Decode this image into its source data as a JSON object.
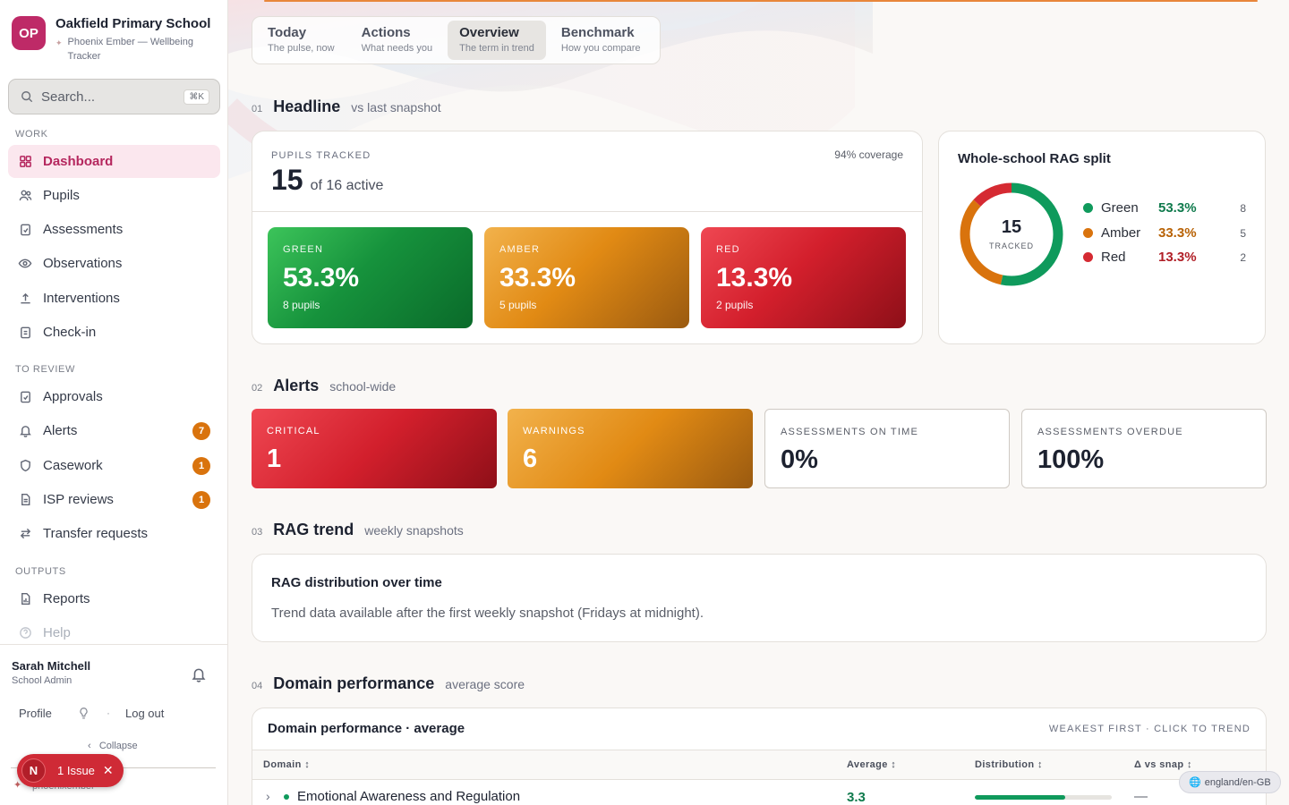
{
  "school": {
    "initials": "OP",
    "name": "Oakfield Primary School",
    "product": "Phoenix Ember — Wellbeing Tracker"
  },
  "search": {
    "placeholder": "Search...",
    "shortcut": "⌘K"
  },
  "sidebar": {
    "sections": {
      "work": "WORK",
      "review": "TO REVIEW",
      "outputs": "OUTPUTS"
    },
    "work_items": [
      {
        "label": "Dashboard",
        "icon": "grid-icon"
      },
      {
        "label": "Pupils",
        "icon": "users-icon"
      },
      {
        "label": "Assessments",
        "icon": "clipboard-check-icon"
      },
      {
        "label": "Observations",
        "icon": "eye-icon"
      },
      {
        "label": "Interventions",
        "icon": "upload-icon"
      },
      {
        "label": "Check-in",
        "icon": "clipboard-icon"
      }
    ],
    "review_items": [
      {
        "label": "Approvals",
        "icon": "clipboard-check-icon"
      },
      {
        "label": "Alerts",
        "icon": "bell-icon",
        "badge": "7"
      },
      {
        "label": "Casework",
        "icon": "shield-icon",
        "badge": "1"
      },
      {
        "label": "ISP reviews",
        "icon": "document-icon",
        "badge": "1"
      },
      {
        "label": "Transfer requests",
        "icon": "arrows-icon"
      }
    ],
    "output_items": [
      {
        "label": "Reports",
        "icon": "report-icon"
      },
      {
        "label": "Help",
        "icon": "help-icon"
      }
    ]
  },
  "user": {
    "name": "Sarah Mitchell",
    "role": "School Admin",
    "profile_label": "Profile",
    "logout_label": "Log out",
    "collapse_label": "Collapse"
  },
  "issue_pill": {
    "avatar": "N",
    "label": "1 Issue"
  },
  "tabs": [
    {
      "name": "Today",
      "sub": "The pulse, now"
    },
    {
      "name": "Actions",
      "sub": "What needs you"
    },
    {
      "name": "Overview",
      "sub": "The term in trend",
      "active": true
    },
    {
      "name": "Benchmark",
      "sub": "How you compare"
    }
  ],
  "headline": {
    "num": "01",
    "title": "Headline",
    "sub": "vs last snapshot",
    "pupils_label": "PUPILS TRACKED",
    "pupils_count": "15",
    "pupils_of": "of 16 active",
    "coverage": "94% coverage",
    "tiles": [
      {
        "label": "GREEN",
        "value": "53.3%",
        "sub": "8 pupils"
      },
      {
        "label": "AMBER",
        "value": "33.3%",
        "sub": "5 pupils"
      },
      {
        "label": "RED",
        "value": "13.3%",
        "sub": "2 pupils"
      }
    ]
  },
  "rag_split": {
    "title": "Whole-school RAG split",
    "total": "15",
    "total_label": "TRACKED",
    "rows": [
      {
        "name": "Green",
        "pct": "53.3%",
        "count": "8",
        "color": "#0f9a5c"
      },
      {
        "name": "Amber",
        "pct": "33.3%",
        "count": "5",
        "color": "#d9730d"
      },
      {
        "name": "Red",
        "pct": "13.3%",
        "count": "2",
        "color": "#d52a32"
      }
    ]
  },
  "alerts": {
    "num": "02",
    "title": "Alerts",
    "sub": "school-wide",
    "tiles": [
      {
        "label": "CRITICAL",
        "value": "1"
      },
      {
        "label": "WARNINGS",
        "value": "6"
      },
      {
        "label": "ASSESSMENTS ON TIME",
        "value": "0%"
      },
      {
        "label": "ASSESSMENTS OVERDUE",
        "value": "100%"
      }
    ]
  },
  "trend": {
    "num": "03",
    "title": "RAG trend",
    "sub": "weekly snapshots",
    "card_title": "RAG distribution over time",
    "message": "Trend data available after the first weekly snapshot (Fridays at midnight)."
  },
  "domain": {
    "num": "04",
    "title": "Domain performance",
    "sub": "average score",
    "card_title": "Domain performance · average",
    "hint": "WEAKEST FIRST · CLICK TO TREND",
    "columns": [
      "Domain ↕",
      "Average ↕",
      "Distribution ↕",
      "Δ vs snap ↕"
    ],
    "rows": [
      {
        "domain": "Emotional Awareness and Regulation",
        "average": "3.3",
        "distribution": 0.66,
        "delta": "—"
      }
    ]
  },
  "colors": {
    "accent": "#be2a67",
    "green": "#0f9a5c",
    "amber": "#d9730d",
    "red": "#d52a32"
  },
  "locale": "england/en-GB"
}
